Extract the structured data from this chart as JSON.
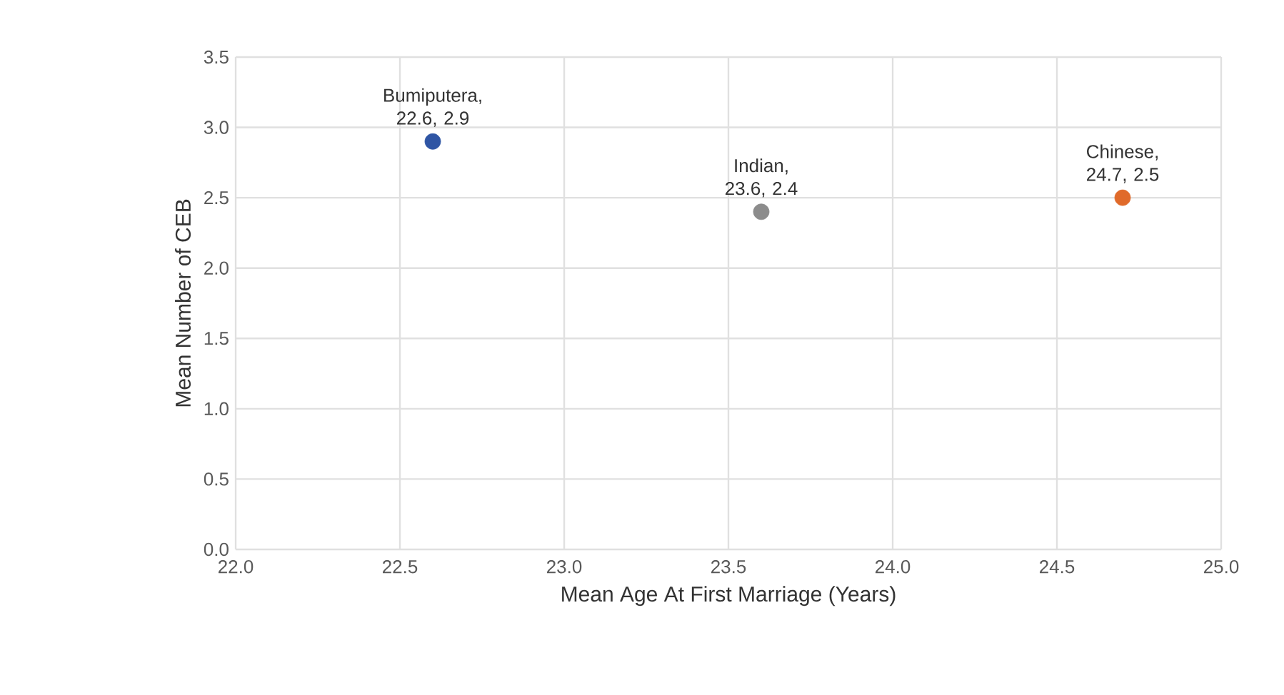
{
  "chart_data": {
    "type": "scatter",
    "xlabel": "Mean Age At First Marriage (Years)",
    "ylabel": "Mean Number of CEB",
    "series": [
      {
        "color": "#2f55a4",
        "x": [
          22.6
        ],
        "values": [
          2.9
        ]
      },
      {
        "color": "#8c8c8c",
        "x": [
          23.6
        ],
        "values": [
          2.4
        ]
      },
      {
        "color": "#e06a2a",
        "x": [
          24.7
        ],
        "values": [
          2.5
        ]
      }
    ],
    "annotations": [
      {
        "text": "Bumiputera, 22.6, 2.9",
        "x": 22.6,
        "y": 2.9
      },
      {
        "text": "Indian, 23.6, 2.4",
        "x": 23.6,
        "y": 2.4
      },
      {
        "text": "Chinese, 24.7, 2.5",
        "x": 24.7,
        "y": 2.5
      }
    ],
    "xlim": [
      22.0,
      25.0
    ],
    "ylim": [
      0.0,
      3.5
    ],
    "xticks": [
      {
        "value": 22,
        "label": "22.0"
      },
      22.5,
      {
        "value": 23,
        "label": "23.0"
      },
      23.5,
      {
        "value": 24,
        "label": "24.0"
      },
      24.5,
      {
        "value": 25,
        "label": "25.0"
      }
    ],
    "yticks": [
      {
        "value": 0,
        "label": "0.0"
      },
      0.5,
      {
        "value": 1,
        "label": "1.0"
      },
      1.5,
      {
        "value": 2,
        "label": "2.0"
      },
      2.5,
      {
        "value": 3,
        "label": "3.0"
      },
      3.5
    ],
    "grid": true
  }
}
